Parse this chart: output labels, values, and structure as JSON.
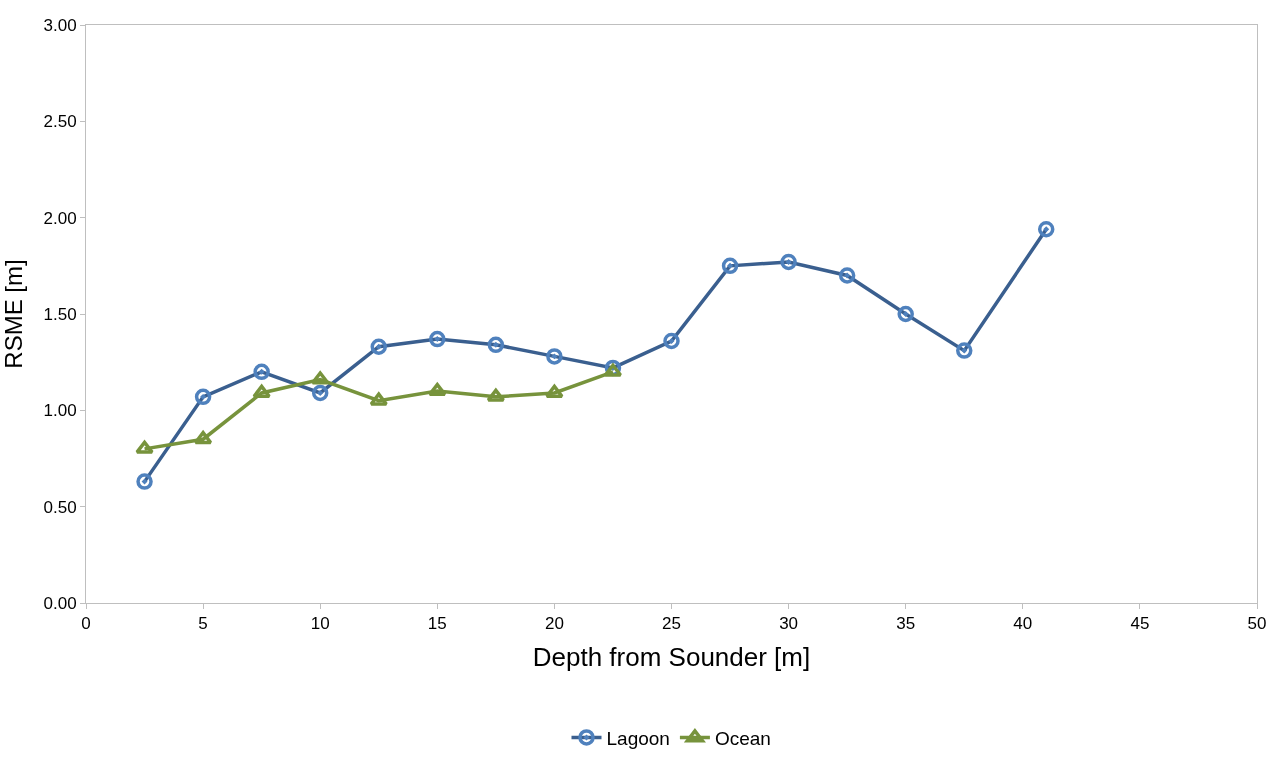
{
  "chart_data": {
    "type": "line",
    "xlabel": "Depth from Sounder [m]",
    "ylabel": "RSME [m]",
    "xlim": [
      0,
      50
    ],
    "xticks": [
      0,
      5,
      10,
      15,
      20,
      25,
      30,
      35,
      40,
      45,
      50
    ],
    "ylim": [
      0,
      3
    ],
    "yticks": [
      {
        "value": 0,
        "label": "0.00"
      },
      {
        "value": 0.5,
        "label": "0.50"
      },
      {
        "value": 1,
        "label": "1.00"
      },
      {
        "value": 1.5,
        "label": "1.50"
      },
      {
        "value": 2,
        "label": "2.00"
      },
      {
        "value": 2.5,
        "label": "2.50"
      },
      {
        "value": 3,
        "label": "3.00"
      }
    ],
    "legend": "bottom",
    "line_style": "solid",
    "series": [
      {
        "name": "Lagoon",
        "color": "#3a5f8f",
        "marker": "circle",
        "x": [
          2.5,
          5,
          7.5,
          10,
          12.5,
          15,
          17.5,
          20,
          22.5,
          25,
          27.5,
          30,
          32.5,
          35,
          37.5,
          41
        ],
        "values": [
          0.63,
          1.07,
          1.2,
          1.09,
          1.33,
          1.37,
          1.34,
          1.28,
          1.22,
          1.36,
          1.75,
          1.77,
          1.7,
          1.5,
          1.31,
          1.94
        ]
      },
      {
        "name": "Ocean",
        "color": "#77933c",
        "marker": "triangle",
        "x": [
          2.5,
          5,
          7.5,
          10,
          12.5,
          15,
          17.5,
          20,
          22.5
        ],
        "values": [
          0.8,
          0.85,
          1.09,
          1.16,
          1.05,
          1.1,
          1.07,
          1.09,
          1.2
        ]
      }
    ]
  }
}
